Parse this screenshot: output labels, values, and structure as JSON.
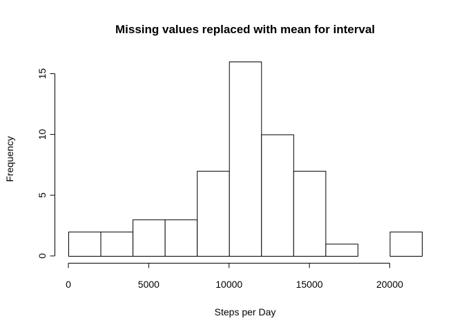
{
  "chart_data": {
    "type": "bar",
    "title": "Missing values replaced with mean for interval",
    "xlabel": "Steps per Day",
    "ylabel": "Frequency",
    "bin_edges": [
      0,
      2000,
      4000,
      6000,
      8000,
      10000,
      12000,
      14000,
      16000,
      18000,
      20000,
      22000
    ],
    "values": [
      2,
      2,
      3,
      3,
      7,
      16,
      10,
      7,
      1,
      0,
      2
    ],
    "xlim": [
      0,
      22000
    ],
    "ylim": [
      0,
      16
    ],
    "x_ticks": [
      0,
      5000,
      10000,
      15000,
      20000
    ],
    "y_ticks": [
      0,
      5,
      10,
      15
    ],
    "grid": false,
    "bar_fill": "#ffffff",
    "bar_stroke": "#000000"
  }
}
